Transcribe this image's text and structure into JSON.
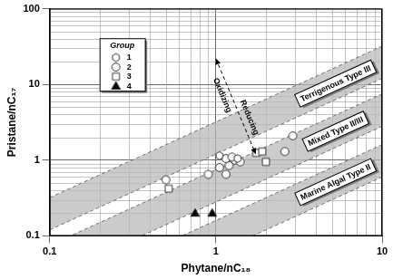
{
  "chart_data": {
    "type": "scatter",
    "x_label": "Phytane/nC₁₈",
    "y_label": "Pristane/nC₁₇",
    "log": true,
    "grid": true,
    "legend": "upper left",
    "legend_title": "Group",
    "xlim": [
      0.1,
      10
    ],
    "ylim": [
      0.1,
      100
    ],
    "xticks": [
      0.1,
      1,
      10
    ],
    "yticks": [
      0.1,
      1,
      10,
      100
    ],
    "series": [
      {
        "name": "1",
        "marker": "hexagon",
        "color": "#ffffff",
        "x": [
          1.05,
          1.35
        ],
        "values": [
          1.15,
          1.05
        ]
      },
      {
        "name": "2",
        "marker": "circle",
        "color": "#ffffff",
        "x": [
          0.5,
          0.9,
          1.15,
          1.05,
          1.2,
          1.3,
          1.4,
          1.15,
          1.25,
          2.6,
          2.9
        ],
        "values": [
          0.55,
          0.65,
          0.65,
          0.8,
          0.85,
          1.0,
          0.95,
          1.05,
          1.1,
          1.3,
          2.1
        ]
      },
      {
        "name": "3",
        "marker": "square",
        "color": "#ffffff",
        "x": [
          0.52,
          1.75,
          1.9,
          2.0
        ],
        "values": [
          0.42,
          1.25,
          1.3,
          0.95
        ]
      },
      {
        "name": "4",
        "marker": "triangle",
        "color": "#000000",
        "x": [
          0.75,
          0.95
        ],
        "values": [
          0.2,
          0.2
        ]
      }
    ],
    "bands": [
      {
        "label": "Terrigenous Type III",
        "x": [
          0.1,
          10
        ],
        "lower": [
          0.12,
          12
        ],
        "upper": [
          0.32,
          32
        ]
      },
      {
        "label": "Mixed Type II/III",
        "x": [
          0.1,
          10
        ],
        "lower": [
          0.028,
          2.8
        ],
        "upper": [
          0.075,
          7.5
        ]
      },
      {
        "label": "Marine Algal Type II",
        "x": [
          0.1,
          10
        ],
        "lower": [
          0.006,
          0.6
        ],
        "upper": [
          0.016,
          1.6
        ]
      }
    ],
    "arrow_labels": [
      "Oxidizing",
      "Reducing"
    ]
  }
}
